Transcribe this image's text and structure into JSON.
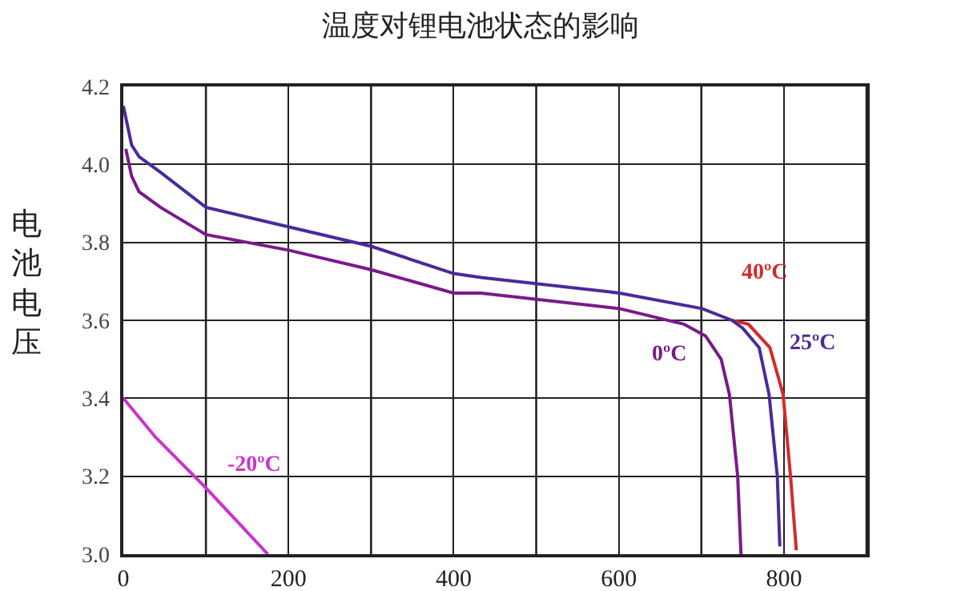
{
  "chart_data": {
    "type": "line",
    "title": "温度对锂电池状态的影响",
    "ylabel": "电池电压",
    "xlim": [
      0,
      900
    ],
    "xticks": [
      0,
      200,
      400,
      600,
      800
    ],
    "ylim": [
      3.0,
      4.2
    ],
    "yticks": [
      {
        "value": 3.0,
        "label": "3.0"
      },
      3.2,
      3.4,
      3.6,
      3.8,
      {
        "value": 4.0,
        "label": "4.0"
      },
      4.2
    ],
    "grid": true,
    "legend": false,
    "marker": "none",
    "line_style": "solid",
    "series": [
      {
        "name": "40ºC",
        "color": "#d42a2a",
        "x": [
          737,
          757,
          783,
          799,
          808,
          815
        ],
        "values": [
          3.6,
          3.59,
          3.53,
          3.41,
          3.2,
          3.01
        ]
      },
      {
        "name": "25ºC",
        "color": "#4a2a9a",
        "x": [
          0,
          10,
          19,
          45,
          100,
          200,
          300,
          400,
          433,
          601,
          701,
          737,
          750,
          770,
          782,
          792,
          795
        ],
        "values": [
          4.15,
          4.05,
          4.02,
          3.98,
          3.89,
          3.84,
          3.79,
          3.72,
          3.71,
          3.67,
          3.63,
          3.6,
          3.58,
          3.53,
          3.41,
          3.2,
          3.02
        ]
      },
      {
        "name": "0ºC",
        "color": "#7a1a8a",
        "x": [
          3,
          10,
          19,
          45,
          100,
          200,
          300,
          400,
          433,
          601,
          679,
          705,
          724,
          734,
          744,
          748
        ],
        "values": [
          4.04,
          3.97,
          3.93,
          3.89,
          3.82,
          3.78,
          3.73,
          3.67,
          3.67,
          3.63,
          3.59,
          3.56,
          3.5,
          3.41,
          3.2,
          3.0
        ]
      },
      {
        "name": "-20ºC",
        "color": "#cc33cc",
        "x": [
          0,
          39,
          100,
          175
        ],
        "values": [
          3.4,
          3.3,
          3.17,
          3.0
        ]
      }
    ]
  }
}
